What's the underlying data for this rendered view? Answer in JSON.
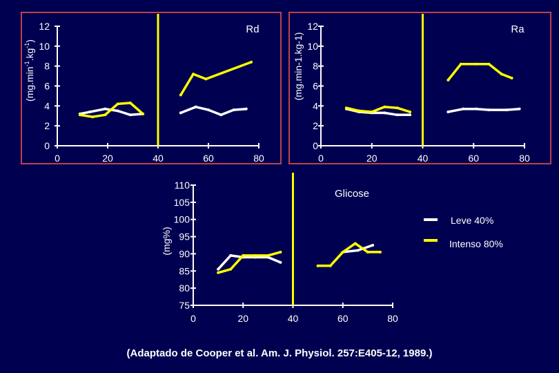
{
  "colors": {
    "background": "#000050",
    "frame": "#c0404a",
    "axis": "#ffffff",
    "divider": "#ffff00",
    "leve": "#ffffff",
    "intenso": "#ffff00"
  },
  "legend": {
    "leve": "Leve 40%",
    "intenso": "Intenso 80%"
  },
  "caption": "(Adaptado de Cooper et al. Am.  J.  Physiol. 257:E405-12, 1989.)",
  "chart_data": [
    {
      "id": "rd",
      "type": "line",
      "title": "Rd",
      "ylabel_main": "(mg.min",
      "ylabel_sup1": "-1",
      "ylabel_mid": ".kg",
      "ylabel_sup2": "-1",
      "ylabel_end": ")",
      "xlim": [
        0,
        80
      ],
      "ylim": [
        0,
        12
      ],
      "xticks": [
        "0",
        "20",
        "40",
        "60",
        "80"
      ],
      "yticks": [
        "0",
        "2",
        "4",
        "6",
        "8",
        "10",
        "12"
      ],
      "divider_x": 40,
      "series": [
        {
          "key": "leve",
          "segments": [
            [
              [
                9,
                3.2
              ],
              [
                13,
                3.4
              ],
              [
                19,
                3.7
              ],
              [
                24,
                3.5
              ],
              [
                29,
                3.1
              ],
              [
                34,
                3.2
              ]
            ],
            [
              [
                49,
                3.3
              ],
              [
                55,
                3.9
              ],
              [
                60,
                3.6
              ],
              [
                65,
                3.1
              ],
              [
                70,
                3.6
              ],
              [
                75,
                3.7
              ]
            ]
          ]
        },
        {
          "key": "intenso",
          "segments": [
            [
              [
                9,
                3.1
              ],
              [
                14,
                2.9
              ],
              [
                19,
                3.1
              ],
              [
                24,
                4.2
              ],
              [
                29,
                4.3
              ],
              [
                34,
                3.2
              ]
            ],
            [
              [
                49,
                5.1
              ],
              [
                54,
                7.2
              ],
              [
                59,
                6.7
              ],
              [
                77,
                8.4
              ]
            ]
          ]
        }
      ]
    },
    {
      "id": "ra",
      "type": "line",
      "title": "Ra",
      "ylabel": "(mg.min-1.kg-1)",
      "xlim": [
        0,
        80
      ],
      "ylim": [
        0,
        12
      ],
      "xticks": [
        "0",
        "20",
        "40",
        "60",
        "80"
      ],
      "yticks": [
        "0",
        "2",
        "4",
        "6",
        "8",
        "10",
        "12"
      ],
      "divider_x": 40,
      "series": [
        {
          "key": "leve",
          "segments": [
            [
              [
                10,
                3.7
              ],
              [
                15,
                3.4
              ],
              [
                20,
                3.3
              ],
              [
                25,
                3.3
              ],
              [
                30,
                3.1
              ],
              [
                35,
                3.1
              ]
            ],
            [
              [
                50,
                3.4
              ],
              [
                56,
                3.7
              ],
              [
                61,
                3.7
              ],
              [
                66,
                3.6
              ],
              [
                73,
                3.6
              ],
              [
                78,
                3.7
              ]
            ]
          ]
        },
        {
          "key": "intenso",
          "segments": [
            [
              [
                10,
                3.8
              ],
              [
                15,
                3.5
              ],
              [
                20,
                3.4
              ],
              [
                25,
                3.9
              ],
              [
                30,
                3.8
              ],
              [
                35,
                3.4
              ]
            ],
            [
              [
                50,
                6.6
              ],
              [
                55,
                8.2
              ],
              [
                61,
                8.2
              ],
              [
                66,
                8.2
              ],
              [
                71,
                7.2
              ],
              [
                75,
                6.8
              ]
            ]
          ]
        }
      ]
    },
    {
      "id": "glicose",
      "type": "line",
      "title": "Glicose",
      "ylabel": "(mg%)",
      "xlim": [
        0,
        80
      ],
      "ylim": [
        75,
        110
      ],
      "xticks": [
        "0",
        "20",
        "40",
        "60",
        "80"
      ],
      "yticks": [
        "75",
        "80",
        "85",
        "90",
        "95",
        "100",
        "105",
        "110"
      ],
      "divider_x": 40,
      "series": [
        {
          "key": "leve",
          "segments": [
            [
              [
                10,
                85.5
              ],
              [
                15,
                89.5
              ],
              [
                20,
                89
              ],
              [
                25,
                89
              ],
              [
                30,
                89
              ],
              [
                35,
                87.5
              ]
            ],
            [
              [
                60,
                90.5
              ],
              [
                66,
                91
              ],
              [
                72,
                92.5
              ]
            ]
          ]
        },
        {
          "key": "intenso",
          "segments": [
            [
              [
                10,
                84.5
              ],
              [
                15,
                85.5
              ],
              [
                20,
                89.5
              ],
              [
                25,
                89.5
              ],
              [
                30,
                89.5
              ],
              [
                35,
                90.5
              ]
            ],
            [
              [
                50,
                86.5
              ],
              [
                55,
                86.5
              ],
              [
                60,
                90.5
              ],
              [
                65,
                93
              ],
              [
                70,
                90.5
              ],
              [
                75,
                90.5
              ]
            ]
          ]
        }
      ]
    }
  ]
}
